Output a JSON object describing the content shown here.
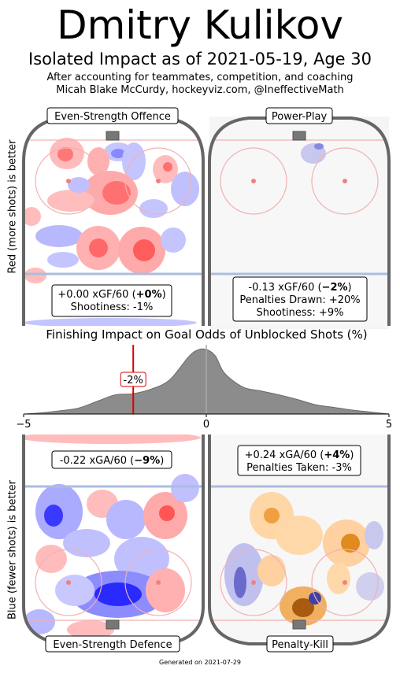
{
  "header": {
    "title": "Dmitry Kulikov",
    "subtitle": "Isolated Impact as of 2021-05-19, Age 30",
    "note_line1": "After accounting for teammates, competition, and coaching",
    "note_line2": "Micah Blake McCurdy, hockeyviz.com, @IneffectiveMath"
  },
  "axis_labels": {
    "top": "Red (more shots) is better",
    "bottom": "Blue (fewer shots) is better"
  },
  "panels": {
    "ev_offence": {
      "title": "Even-Strength Offence",
      "stat_value": "+0.00 xGF/60 (",
      "stat_pct": "+0%",
      "stat_close": ")",
      "line2": "Shootiness: -1%"
    },
    "pp": {
      "title": "Power-Play",
      "stat_value": "-0.13 xGF/60 (",
      "stat_pct": "−2%",
      "stat_close": ")",
      "line2": "Penalties Drawn: +20%",
      "line3": "Shootiness: +9%"
    },
    "ev_defence": {
      "title": "Even-Strength Defence",
      "stat_value": "-0.22 xGA/60 (",
      "stat_pct": "−9%",
      "stat_close": ")"
    },
    "pk": {
      "title": "Penalty-Kill",
      "stat_value": "+0.24 xGA/60 (",
      "stat_pct": "+4%",
      "stat_close": ")",
      "line2": "Penalties Taken: -3%"
    }
  },
  "chart_data": {
    "type": "area",
    "title": "Finishing Impact on Goal Odds of Unblocked Shots (%)",
    "xlim": [
      -5,
      5
    ],
    "tick_labels": [
      "−5",
      "0",
      "5"
    ],
    "marker_value": -2,
    "marker_label": "-2%",
    "density": {
      "x": [
        -5,
        -4.5,
        -4,
        -3.5,
        -3,
        -2.5,
        -2,
        -1.5,
        -1,
        -0.5,
        -0.25,
        0,
        0.25,
        0.5,
        1,
        1.5,
        2,
        2.5,
        3,
        3.5,
        4,
        4.5,
        5
      ],
      "y": [
        0.0,
        0.02,
        0.05,
        0.09,
        0.19,
        0.29,
        0.31,
        0.38,
        0.52,
        0.86,
        0.97,
        0.98,
        0.88,
        0.62,
        0.41,
        0.35,
        0.29,
        0.22,
        0.14,
        0.1,
        0.06,
        0.03,
        0.0
      ]
    },
    "colors": {
      "density_fill": "#8c8c8c",
      "marker": "#e00000",
      "zero_line": "#aaaaaa"
    }
  },
  "footer": "Generated on 2021-07-29"
}
